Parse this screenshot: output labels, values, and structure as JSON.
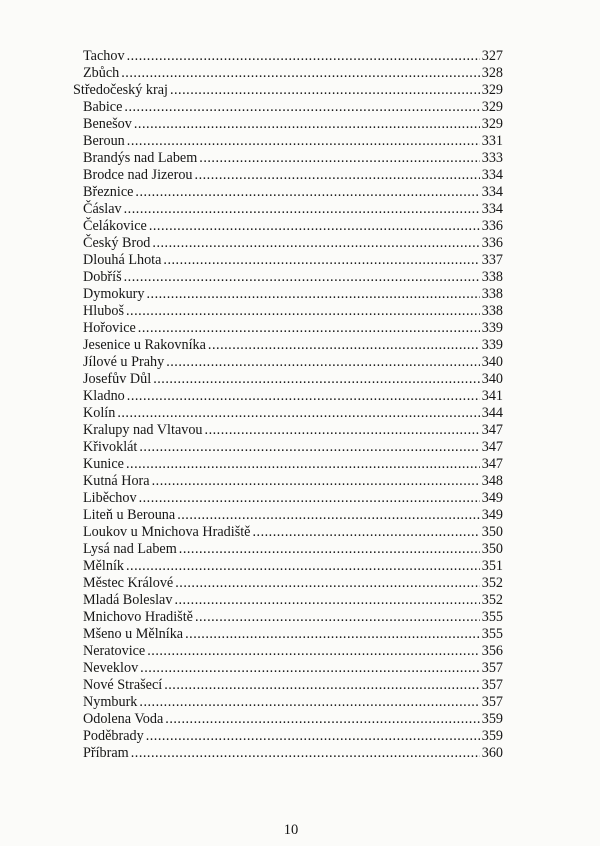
{
  "toc": [
    {
      "name": "Tachov",
      "page": "327",
      "level": 2
    },
    {
      "name": "Zbůch",
      "page": "328",
      "level": 2
    },
    {
      "name": "Středočeský kraj",
      "page": "329",
      "level": 1
    },
    {
      "name": "Babice",
      "page": "329",
      "level": 2
    },
    {
      "name": "Benešov",
      "page": "329",
      "level": 2
    },
    {
      "name": "Beroun",
      "page": "331",
      "level": 2
    },
    {
      "name": "Brandýs nad Labem",
      "page": "333",
      "level": 2
    },
    {
      "name": "Brodce nad Jizerou",
      "page": "334",
      "level": 2
    },
    {
      "name": "Březnice",
      "page": "334",
      "level": 2
    },
    {
      "name": "Čáslav",
      "page": "334",
      "level": 2
    },
    {
      "name": "Čelákovice",
      "page": "336",
      "level": 2
    },
    {
      "name": "Český Brod",
      "page": "336",
      "level": 2
    },
    {
      "name": "Dlouhá Lhota",
      "page": "337",
      "level": 2
    },
    {
      "name": "Dobříš",
      "page": "338",
      "level": 2
    },
    {
      "name": "Dymokury",
      "page": "338",
      "level": 2
    },
    {
      "name": "Hluboš",
      "page": "338",
      "level": 2
    },
    {
      "name": "Hořovice",
      "page": "339",
      "level": 2
    },
    {
      "name": "Jesenice u Rakovníka",
      "page": "339",
      "level": 2
    },
    {
      "name": "Jílové u Prahy",
      "page": "340",
      "level": 2
    },
    {
      "name": "Josefův Důl",
      "page": "340",
      "level": 2
    },
    {
      "name": "Kladno",
      "page": "341",
      "level": 2
    },
    {
      "name": "Kolín",
      "page": "344",
      "level": 2
    },
    {
      "name": "Kralupy nad Vltavou",
      "page": "347",
      "level": 2
    },
    {
      "name": "Křivoklát",
      "page": "347",
      "level": 2
    },
    {
      "name": "Kunice",
      "page": "347",
      "level": 2
    },
    {
      "name": "Kutná Hora",
      "page": "348",
      "level": 2
    },
    {
      "name": "Liběchov",
      "page": "349",
      "level": 2
    },
    {
      "name": "Liteň u Berouna",
      "page": "349",
      "level": 2
    },
    {
      "name": "Loukov u Mnichova Hradiště",
      "page": "350",
      "level": 2
    },
    {
      "name": "Lysá nad Labem",
      "page": "350",
      "level": 2
    },
    {
      "name": "Mělník",
      "page": "351",
      "level": 2
    },
    {
      "name": "Městec Králové",
      "page": "352",
      "level": 2
    },
    {
      "name": "Mladá Boleslav",
      "page": "352",
      "level": 2
    },
    {
      "name": "Mnichovo Hradiště",
      "page": "355",
      "level": 2
    },
    {
      "name": "Mšeno u Mělníka",
      "page": "355",
      "level": 2
    },
    {
      "name": "Neratovice",
      "page": "356",
      "level": 2
    },
    {
      "name": "Neveklov",
      "page": "357",
      "level": 2
    },
    {
      "name": "Nové Strašecí",
      "page": "357",
      "level": 2
    },
    {
      "name": "Nymburk",
      "page": "357",
      "level": 2
    },
    {
      "name": "Odolena Voda",
      "page": "359",
      "level": 2
    },
    {
      "name": "Poděbrady",
      "page": "359",
      "level": 2
    },
    {
      "name": "Příbram",
      "page": "360",
      "level": 2
    }
  ],
  "page_number": "10"
}
